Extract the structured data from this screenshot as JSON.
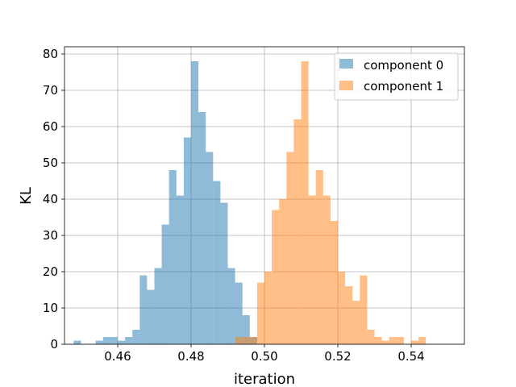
{
  "chart_data": {
    "type": "histogram",
    "xlabel": "iteration",
    "ylabel": "KL",
    "xlim": [
      0.4455,
      0.5545
    ],
    "ylim": [
      0,
      82
    ],
    "x_ticks": [
      0.46,
      0.48,
      0.5,
      0.52,
      0.54
    ],
    "x_tick_labels": [
      "0.46",
      "0.48",
      "0.50",
      "0.52",
      "0.54"
    ],
    "y_ticks": [
      0,
      10,
      20,
      30,
      40,
      50,
      60,
      70,
      80
    ],
    "y_tick_labels": [
      "0",
      "10",
      "20",
      "30",
      "40",
      "50",
      "60",
      "70",
      "80"
    ],
    "grid": true,
    "legend_position": "top-right",
    "series": [
      {
        "name": "component 0",
        "color": "#1f77b4",
        "opacity": 0.5,
        "bin_start": 0.448,
        "bin_width": 0.002,
        "counts": [
          1,
          0,
          0,
          1,
          2,
          2,
          1,
          2,
          4,
          19,
          15,
          21,
          33,
          48,
          41,
          57,
          78,
          64,
          53,
          45,
          39,
          21,
          17,
          8,
          2
        ]
      },
      {
        "name": "component 1",
        "color": "#ff7f0e",
        "opacity": 0.5,
        "bin_start": 0.492,
        "bin_width": 0.002,
        "counts": [
          2,
          2,
          2,
          17,
          20,
          37,
          40,
          53,
          62,
          78,
          41,
          48,
          41,
          34,
          20,
          16,
          12,
          19,
          4,
          2,
          1,
          2,
          2,
          0,
          1,
          2
        ]
      }
    ]
  }
}
